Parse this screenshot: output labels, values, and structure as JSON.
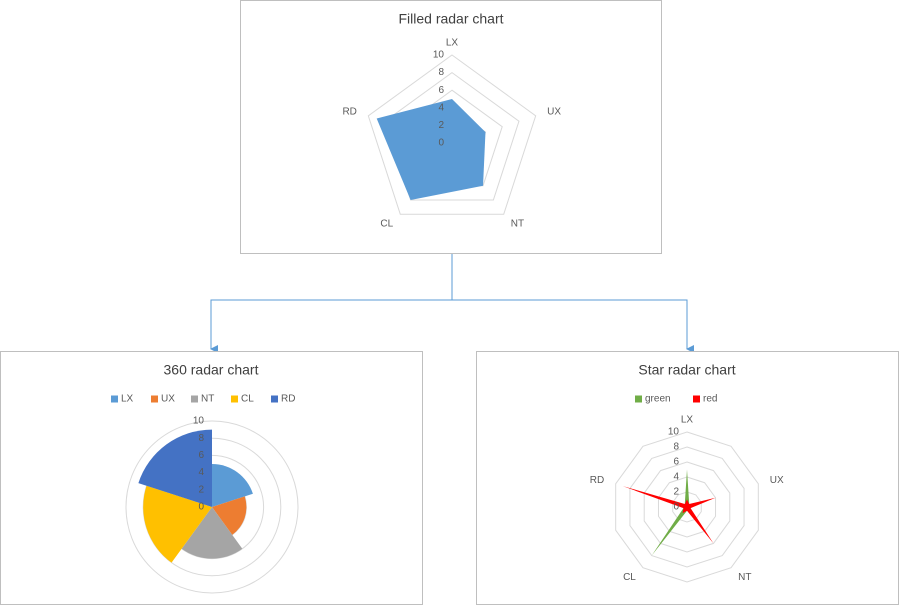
{
  "chart_data": [
    {
      "type": "radar",
      "title": "Filled radar chart",
      "categories": [
        "LX",
        "UX",
        "NT",
        "CL",
        "RD"
      ],
      "series": [
        {
          "values": [
            5,
            4,
            6,
            8,
            9
          ],
          "color": "#5b9bd5"
        }
      ],
      "ylim": [
        0,
        10
      ],
      "yticks": [
        0,
        2,
        4,
        6,
        8,
        10
      ],
      "grid": true
    },
    {
      "type": "polar",
      "title": "360 radar chart",
      "categories": [
        "LX",
        "UX",
        "NT",
        "CL",
        "RD"
      ],
      "values": [
        5,
        4,
        6,
        8,
        9
      ],
      "colors": [
        "#5b9bd5",
        "#ed7d31",
        "#a5a5a5",
        "#ffc000",
        "#4472c4"
      ],
      "ylim": [
        0,
        10
      ],
      "yticks": [
        0,
        2,
        4,
        6,
        8,
        10
      ],
      "grid": true,
      "legend": "top"
    },
    {
      "type": "radar",
      "title": "Star radar chart",
      "categories": [
        "LX",
        null,
        "UX",
        null,
        "NT",
        null,
        "CL",
        null,
        "RD",
        null
      ],
      "series": [
        {
          "name": "green",
          "color": "#70ad47",
          "values": [
            5,
            0.5,
            1,
            0.5,
            1,
            0.5,
            8,
            0.5,
            1,
            0.5
          ]
        },
        {
          "name": "red",
          "color": "#ff0000",
          "values": [
            1,
            0.5,
            4,
            0.5,
            6,
            0.5,
            1,
            0.5,
            9,
            0.5
          ]
        }
      ],
      "ylim": [
        0,
        10
      ],
      "yticks": [
        0,
        2,
        4,
        6,
        8,
        10
      ],
      "grid": true,
      "legend": "top"
    }
  ]
}
